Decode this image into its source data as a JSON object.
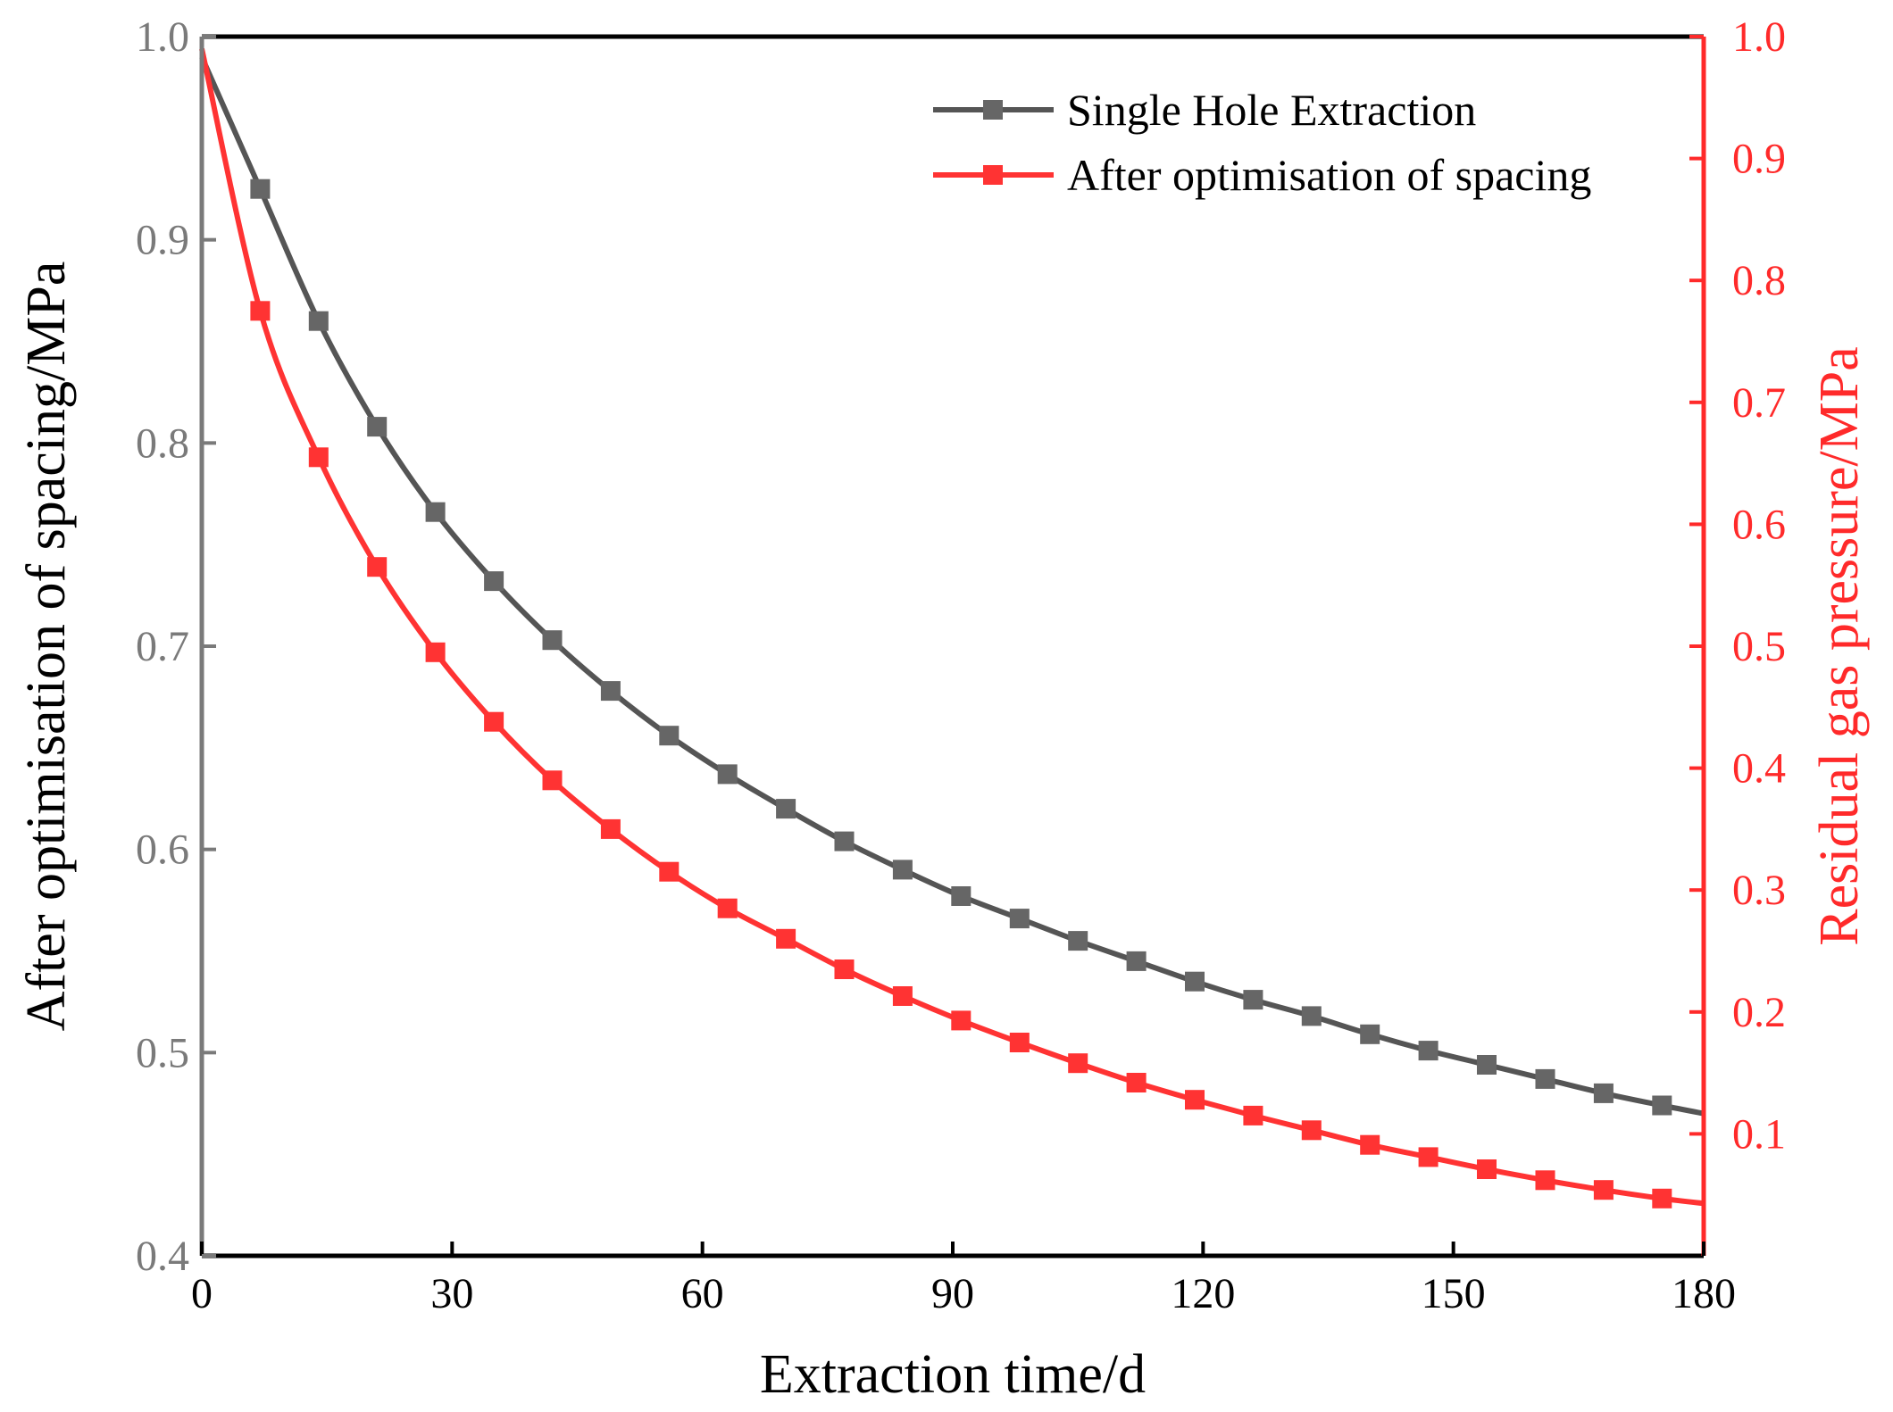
{
  "chart_data": {
    "type": "line",
    "title": "",
    "xlabel": "Extraction time/d",
    "ylabel_left": "After optimisation of spacing/MPa",
    "ylabel_right": "Residual gas pressure/MPa",
    "xlim": [
      0,
      180
    ],
    "ylim_left": [
      0.4,
      1.0
    ],
    "ylim_right": [
      0.0,
      1.0
    ],
    "xticks": [
      "0",
      "30",
      "60",
      "90",
      "120",
      "150",
      "180"
    ],
    "yticks_left": [
      "0.4",
      "0.5",
      "0.6",
      "0.7",
      "0.8",
      "0.9",
      "1.0"
    ],
    "yticks_right": [
      "0.1",
      "0.2",
      "0.3",
      "0.4",
      "0.5",
      "0.6",
      "0.7",
      "0.8",
      "0.9",
      "1.0"
    ],
    "grid": false,
    "legend_position": "top-right",
    "colors": {
      "left_axis": "#7a7a7a",
      "right_axis": "#ff2a2a",
      "frame": "#000000"
    },
    "x": [
      0,
      7,
      14,
      21,
      28,
      35,
      42,
      49,
      56,
      63,
      70,
      77,
      84,
      91,
      98,
      105,
      112,
      119,
      126,
      133,
      140,
      147,
      154,
      161,
      168,
      175,
      180
    ],
    "series": [
      {
        "name": "Single Hole Extraction",
        "axis": "left",
        "color": "#555555",
        "marker": "square",
        "values": [
          0.99,
          0.925,
          0.86,
          0.808,
          0.766,
          0.732,
          0.703,
          0.678,
          0.656,
          0.637,
          0.62,
          0.604,
          0.59,
          0.577,
          0.566,
          0.555,
          0.545,
          0.535,
          0.526,
          0.518,
          0.509,
          0.501,
          0.494,
          0.487,
          0.48,
          0.474,
          0.47
        ]
      },
      {
        "name": "After optimisation of spacing",
        "axis": "right",
        "color": "#ff3333",
        "marker": "square",
        "values": [
          0.99,
          0.775,
          0.655,
          0.565,
          0.495,
          0.438,
          0.39,
          0.35,
          0.315,
          0.285,
          0.26,
          0.235,
          0.213,
          0.193,
          0.175,
          0.158,
          0.142,
          0.128,
          0.115,
          0.103,
          0.091,
          0.081,
          0.071,
          0.062,
          0.054,
          0.047,
          0.043
        ]
      }
    ]
  }
}
